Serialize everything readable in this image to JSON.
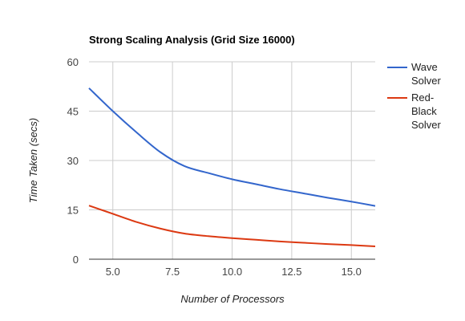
{
  "chart_data": {
    "type": "line",
    "title": "Strong Scaling Analysis (Grid Size 16000)",
    "xlabel": "Number of Processors",
    "ylabel": "Time Taken (secs)",
    "xlim": [
      4,
      16
    ],
    "ylim": [
      0,
      60
    ],
    "x_ticks": [
      "5.0",
      "7.5",
      "10.0",
      "12.5",
      "15.0"
    ],
    "y_ticks": [
      "0",
      "15",
      "30",
      "45",
      "60"
    ],
    "grid": true,
    "legend_position": "right",
    "series": [
      {
        "name": "Wave Solver",
        "legend_lines": [
          "Wave",
          "Solver"
        ],
        "color": "#3366cc",
        "x": [
          4,
          5,
          6,
          7,
          8,
          9,
          10,
          11,
          12,
          13,
          14,
          15,
          16
        ],
        "y": [
          52,
          45,
          38.5,
          32.5,
          28.3,
          26.2,
          24.3,
          22.8,
          21.3,
          20,
          18.7,
          17.5,
          16.2
        ]
      },
      {
        "name": "Red-Black Solver",
        "legend_lines": [
          "Red-",
          "Black",
          "Solver"
        ],
        "color": "#dc3912",
        "x": [
          4,
          5,
          6,
          7,
          8,
          9,
          10,
          11,
          12,
          13,
          14,
          15,
          16
        ],
        "y": [
          16.3,
          13.8,
          11.3,
          9.3,
          7.8,
          7,
          6.4,
          5.9,
          5.4,
          5,
          4.6,
          4.3,
          3.9
        ]
      }
    ]
  }
}
